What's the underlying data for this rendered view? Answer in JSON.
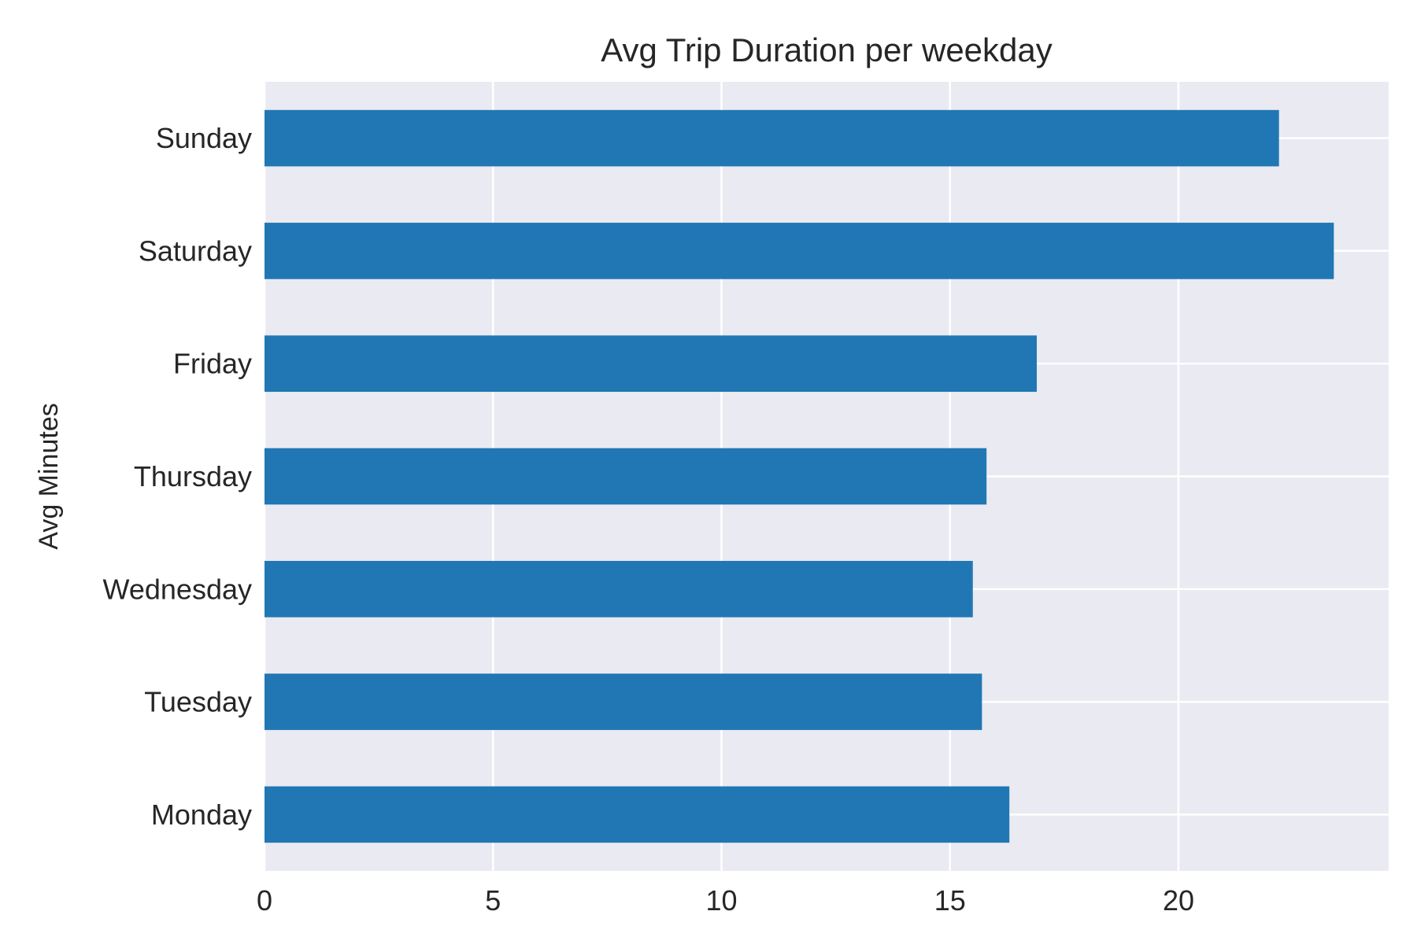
{
  "chart_data": {
    "type": "bar",
    "orientation": "horizontal",
    "title": "Avg Trip Duration per weekday",
    "xlabel": "",
    "ylabel": "Avg Minutes",
    "categories": [
      "Monday",
      "Tuesday",
      "Wednesday",
      "Thursday",
      "Friday",
      "Saturday",
      "Sunday"
    ],
    "values": [
      16.3,
      15.7,
      15.5,
      15.8,
      16.9,
      23.4,
      22.2
    ],
    "xlim": [
      0,
      24.6
    ],
    "xticks": [
      0,
      5,
      10,
      15,
      20
    ],
    "grid": true,
    "legend": "none",
    "colors": {
      "bar": "#2077b4",
      "plot_background": "#eaeaf2",
      "grid": "#ffffff",
      "text": "#262626"
    }
  }
}
